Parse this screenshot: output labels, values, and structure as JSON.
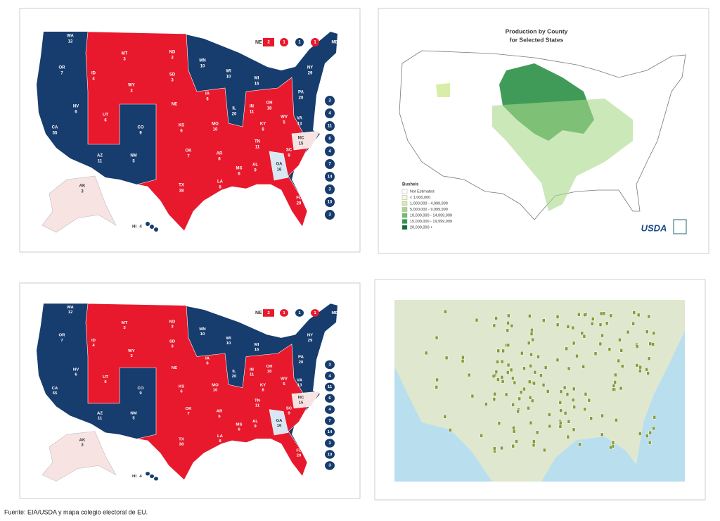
{
  "electoral_map": {
    "states": [
      {
        "abbr": "WA",
        "votes": 12
      },
      {
        "abbr": "OR",
        "votes": 7
      },
      {
        "abbr": "CA",
        "votes": 55
      },
      {
        "abbr": "NV",
        "votes": 6
      },
      {
        "abbr": "ID",
        "votes": 4
      },
      {
        "abbr": "MT",
        "votes": 3
      },
      {
        "abbr": "WY",
        "votes": 3
      },
      {
        "abbr": "UT",
        "votes": 6
      },
      {
        "abbr": "AZ",
        "votes": 11
      },
      {
        "abbr": "CO",
        "votes": 9
      },
      {
        "abbr": "NM",
        "votes": 5
      },
      {
        "abbr": "ND",
        "votes": 3
      },
      {
        "abbr": "SD",
        "votes": 3
      },
      {
        "abbr": "NE"
      },
      {
        "abbr": "KS",
        "votes": 6
      },
      {
        "abbr": "OK",
        "votes": 7
      },
      {
        "abbr": "TX",
        "votes": 38
      },
      {
        "abbr": "MN",
        "votes": 10
      },
      {
        "abbr": "IA",
        "votes": 6
      },
      {
        "abbr": "MO",
        "votes": 10
      },
      {
        "abbr": "AR",
        "votes": 6
      },
      {
        "abbr": "LA",
        "votes": 8
      },
      {
        "abbr": "WI",
        "votes": 10
      },
      {
        "abbr": "IL",
        "votes": 20
      },
      {
        "abbr": "MI",
        "votes": 16
      },
      {
        "abbr": "IN",
        "votes": 11
      },
      {
        "abbr": "OH",
        "votes": 18
      },
      {
        "abbr": "KY",
        "votes": 8
      },
      {
        "abbr": "TN",
        "votes": 11
      },
      {
        "abbr": "MS",
        "votes": 6
      },
      {
        "abbr": "AL",
        "votes": 9
      },
      {
        "abbr": "GA",
        "votes": 16
      },
      {
        "abbr": "FL",
        "votes": 29
      },
      {
        "abbr": "SC",
        "votes": 9
      },
      {
        "abbr": "NC",
        "votes": 15
      },
      {
        "abbr": "VA",
        "votes": 13
      },
      {
        "abbr": "WV",
        "votes": 5
      },
      {
        "abbr": "PA",
        "votes": 20
      },
      {
        "abbr": "NY",
        "votes": 29
      },
      {
        "abbr": "ME"
      },
      {
        "abbr": "AK",
        "votes": 3
      },
      {
        "abbr": "HI",
        "votes": 4
      }
    ],
    "nebraska": {
      "label": "NE",
      "districts": [
        2,
        1,
        1,
        1
      ]
    },
    "sidebar": [
      3,
      4,
      11,
      6,
      4,
      7,
      14,
      3,
      10,
      3
    ]
  },
  "production_map": {
    "title": [
      "Production by County",
      "for Selected States"
    ],
    "legend_title": "Bushels",
    "legend": [
      "Not Estimated",
      "< 1,000,000",
      "1,000,000 - 4,999,999",
      "5,000,000 - 9,999,999",
      "10,000,000 - 14,999,999",
      "15,000,000 - 19,999,999",
      "20,000,000 +"
    ],
    "logo": "USDA"
  },
  "caption": "Fuente: EIA/USDA y mapa colegio electoral de EU."
}
